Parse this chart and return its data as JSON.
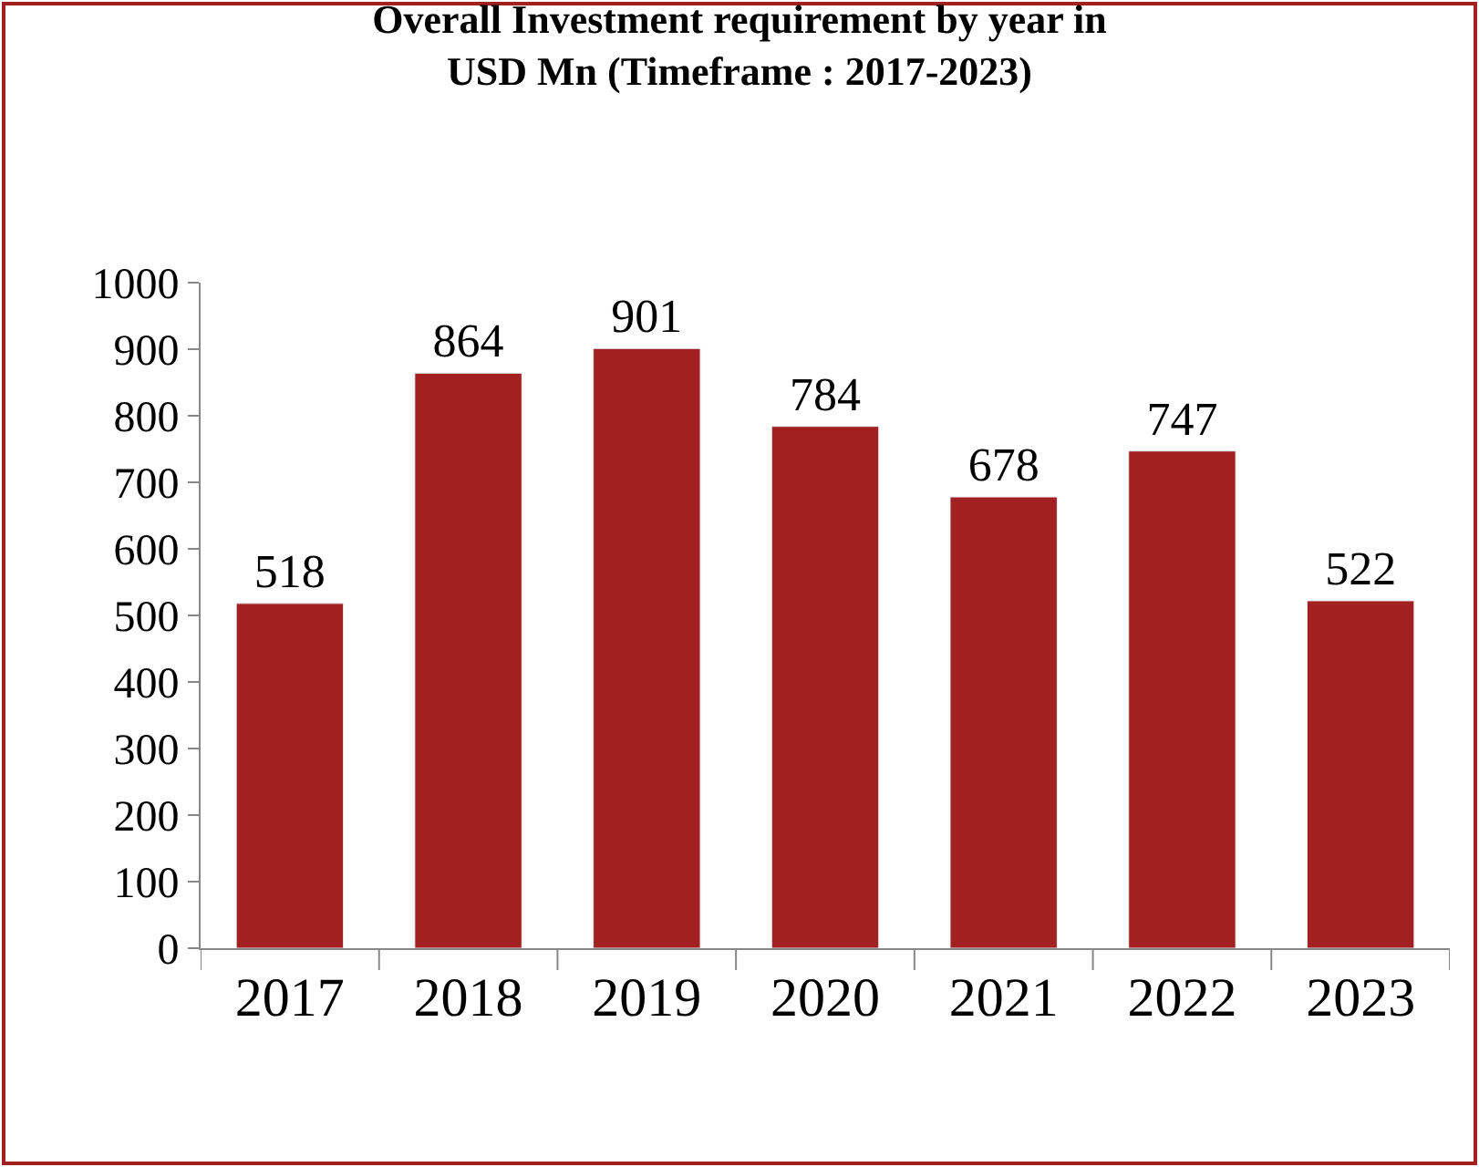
{
  "chart_data": {
    "type": "bar",
    "title": "Overall Investment requirement by year in\nUSD Mn (Timeframe : 2017-2023)",
    "categories": [
      "2017",
      "2018",
      "2019",
      "2020",
      "2021",
      "2022",
      "2023"
    ],
    "values": [
      518,
      864,
      901,
      784,
      678,
      747,
      522
    ],
    "color": "#a32020",
    "ylim": [
      0,
      1000
    ],
    "yticks": [
      0,
      100,
      200,
      300,
      400,
      500,
      600,
      700,
      800,
      900,
      1000
    ],
    "legend": false,
    "data_labels": true
  }
}
